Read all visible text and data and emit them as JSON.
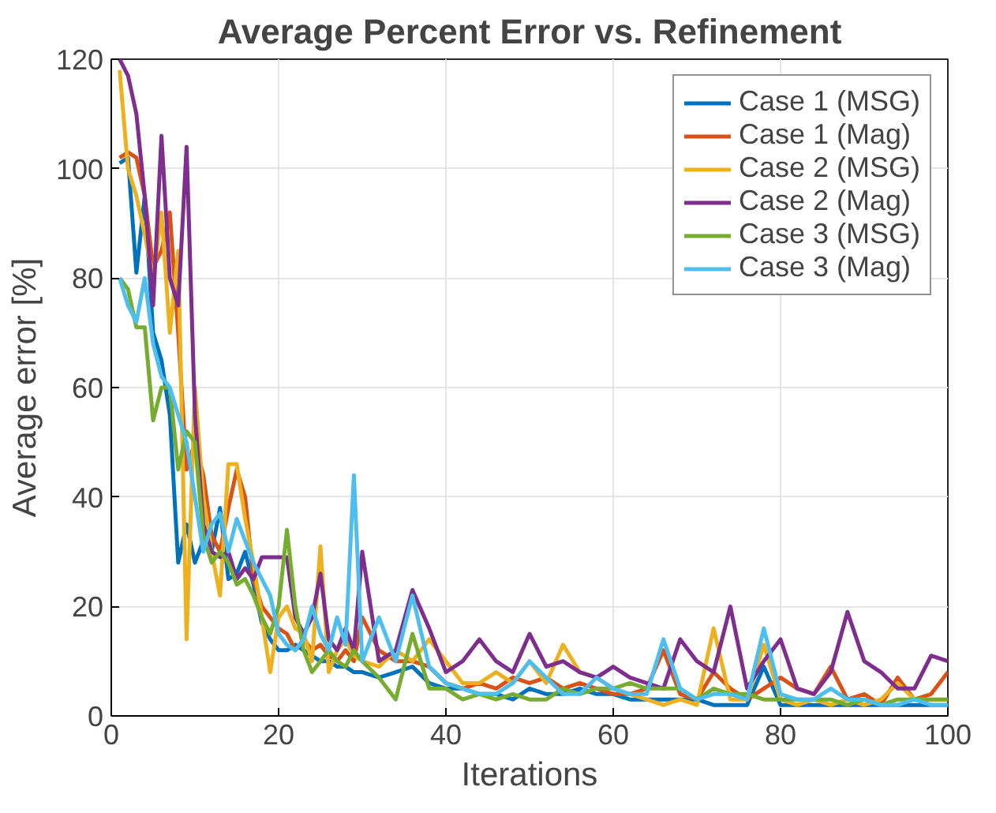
{
  "chart_data": {
    "type": "line",
    "title": "Average Percent Error vs. Refinement",
    "xlabel": "Iterations",
    "ylabel": "Average error [%]",
    "x": [
      1,
      2,
      3,
      4,
      5,
      6,
      7,
      8,
      9,
      10,
      11,
      12,
      13,
      14,
      15,
      16,
      17,
      18,
      19,
      20,
      21,
      22,
      23,
      24,
      25,
      26,
      27,
      28,
      29,
      30,
      32,
      34,
      36,
      38,
      40,
      42,
      44,
      46,
      48,
      50,
      52,
      54,
      56,
      58,
      60,
      62,
      64,
      66,
      68,
      70,
      72,
      74,
      76,
      78,
      80,
      82,
      84,
      86,
      88,
      90,
      92,
      94,
      96,
      98,
      100
    ],
    "xlim": [
      0,
      100
    ],
    "xticks": [
      0,
      20,
      40,
      60,
      80,
      100
    ],
    "ylim": [
      0,
      120
    ],
    "yticks": [
      0,
      20,
      40,
      60,
      80,
      100,
      120
    ],
    "grid": true,
    "legend": "top right",
    "series": [
      {
        "name": "Case 1 (MSG)",
        "color": "#0072bd",
        "values": [
          101,
          102,
          81,
          95,
          70,
          65,
          55,
          28,
          35,
          28,
          32,
          30,
          38,
          25,
          26,
          30,
          24,
          17,
          14,
          12,
          12,
          13,
          12,
          11,
          10,
          10,
          9,
          9,
          8,
          8,
          7,
          8,
          9,
          6,
          5,
          5,
          4,
          4,
          3,
          5,
          4,
          4,
          5,
          4,
          4,
          3,
          3,
          3,
          3,
          3,
          2,
          2,
          2,
          9,
          2,
          2,
          2,
          2,
          2,
          2,
          2,
          2,
          2,
          2,
          2
        ]
      },
      {
        "name": "Case 1 (Mag)",
        "color": "#d95319",
        "values": [
          102,
          103,
          102,
          95,
          82,
          85,
          92,
          70,
          45,
          50,
          44,
          33,
          30,
          38,
          45,
          40,
          25,
          20,
          18,
          16,
          15,
          12,
          14,
          12,
          13,
          11,
          10,
          12,
          10,
          18,
          12,
          10,
          10,
          9,
          6,
          5,
          6,
          5,
          7,
          6,
          7,
          5,
          6,
          5,
          4,
          4,
          5,
          12,
          4,
          3,
          8,
          5,
          3,
          5,
          7,
          5,
          4,
          9,
          3,
          4,
          2,
          7,
          3,
          4,
          8
        ]
      },
      {
        "name": "Case 2 (MSG)",
        "color": "#edb120",
        "values": [
          118,
          100,
          95,
          88,
          80,
          92,
          70,
          85,
          14,
          60,
          40,
          30,
          22,
          46,
          46,
          36,
          28,
          18,
          8,
          18,
          20,
          16,
          15,
          10,
          31,
          8,
          12,
          14,
          11,
          10,
          9,
          12,
          10,
          14,
          10,
          6,
          6,
          8,
          6,
          10,
          6,
          13,
          8,
          7,
          5,
          4,
          3,
          2,
          3,
          2,
          16,
          3,
          3,
          13,
          3,
          2,
          3,
          2,
          3,
          2,
          3,
          6,
          3,
          3,
          3
        ]
      },
      {
        "name": "Case 2 (Mag)",
        "color": "#7e2f8e",
        "values": [
          120,
          117,
          110,
          95,
          75,
          106,
          80,
          75,
          104,
          55,
          35,
          30,
          29,
          30,
          25,
          27,
          25,
          29,
          29,
          29,
          29,
          18,
          15,
          18,
          26,
          14,
          12,
          16,
          12,
          30,
          10,
          12,
          23,
          16,
          8,
          10,
          14,
          10,
          8,
          15,
          9,
          10,
          8,
          7,
          9,
          7,
          6,
          5,
          14,
          10,
          8,
          20,
          5,
          10,
          14,
          5,
          4,
          8,
          19,
          10,
          8,
          5,
          5,
          11,
          10
        ]
      },
      {
        "name": "Case 3 (MSG)",
        "color": "#77ac30",
        "values": [
          80,
          78,
          71,
          71,
          54,
          60,
          60,
          45,
          52,
          50,
          33,
          28,
          30,
          28,
          24,
          25,
          22,
          18,
          15,
          20,
          34,
          20,
          12,
          8,
          10,
          12,
          10,
          9,
          12,
          10,
          7,
          3,
          15,
          5,
          5,
          3,
          4,
          3,
          4,
          3,
          3,
          5,
          4,
          5,
          5,
          6,
          5,
          5,
          5,
          3,
          5,
          4,
          4,
          3,
          3,
          3,
          3,
          3,
          2,
          3,
          2,
          3,
          3,
          3,
          3
        ]
      },
      {
        "name": "Case 3 (Mag)",
        "color": "#4dbeee",
        "values": [
          80,
          75,
          72,
          80,
          68,
          62,
          60,
          55,
          50,
          40,
          30,
          35,
          37,
          30,
          36,
          32,
          28,
          25,
          22,
          15,
          13,
          12,
          14,
          20,
          15,
          12,
          18,
          13,
          44,
          10,
          18,
          10,
          22,
          9,
          6,
          5,
          4,
          4,
          6,
          10,
          7,
          4,
          4,
          7,
          5,
          4,
          4,
          14,
          5,
          3,
          4,
          4,
          3,
          16,
          4,
          3,
          3,
          5,
          3,
          3,
          2,
          2,
          3,
          2,
          2
        ]
      }
    ]
  }
}
